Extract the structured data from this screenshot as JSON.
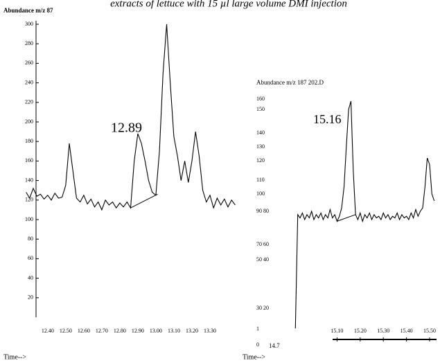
{
  "chart_data": [
    {
      "type": "line",
      "title": "extracts of lettuce with 15 µl large volume DMI injection",
      "y_label": "Abundance m/z 87",
      "x_label": "Time-->",
      "annotation": "12.89",
      "xlim": [
        12.27,
        13.45
      ],
      "xticks": [
        {
          "value": 12.4,
          "label": "12.40"
        },
        {
          "value": 12.5,
          "label": "12.50"
        },
        {
          "value": 12.6,
          "label": "12.60"
        },
        {
          "value": 12.7,
          "label": "12.70"
        },
        {
          "value": 12.8,
          "label": "12.80"
        },
        {
          "value": 12.9,
          "label": "12.90"
        },
        {
          "value": 13.0,
          "label": "13.00"
        },
        {
          "value": 13.1,
          "label": "13.10"
        },
        {
          "value": 13.2,
          "label": "13.20"
        },
        {
          "value": 13.3,
          "label": "13.30"
        }
      ],
      "ylim": [
        0,
        300
      ],
      "yticks": [
        300,
        280,
        260,
        240,
        220,
        200,
        180,
        160,
        140,
        120,
        100,
        80,
        60,
        40,
        20
      ],
      "color": "#000000",
      "x": [
        12.28,
        12.3,
        12.32,
        12.34,
        12.36,
        12.38,
        12.4,
        12.42,
        12.44,
        12.46,
        12.48,
        12.5,
        12.52,
        12.54,
        12.56,
        12.58,
        12.6,
        12.62,
        12.64,
        12.66,
        12.68,
        12.7,
        12.72,
        12.74,
        12.76,
        12.78,
        12.8,
        12.82,
        12.84,
        12.86,
        12.88,
        12.9,
        12.92,
        12.94,
        12.96,
        12.98,
        13.0,
        13.02,
        13.04,
        13.06,
        13.08,
        13.1,
        13.12,
        13.14,
        13.16,
        13.18,
        13.2,
        13.22,
        13.24,
        13.26,
        13.28,
        13.3,
        13.32,
        13.34,
        13.36,
        13.38,
        13.4,
        13.42,
        13.44
      ],
      "values": [
        128,
        122,
        132,
        124,
        126,
        121,
        125,
        120,
        127,
        122,
        123,
        135,
        178,
        150,
        122,
        118,
        125,
        116,
        121,
        113,
        118,
        110,
        120,
        115,
        118,
        112,
        117,
        113,
        118,
        112,
        160,
        188,
        178,
        160,
        140,
        128,
        125,
        170,
        250,
        300,
        240,
        185,
        165,
        140,
        160,
        138,
        160,
        190,
        165,
        130,
        118,
        125,
        112,
        122,
        115,
        121,
        113,
        120,
        115
      ],
      "integration_line": {
        "x": [
          12.86,
          13.01
        ],
        "values": [
          112,
          126
        ]
      }
    },
    {
      "type": "line",
      "y_label": "Abundance m/z 187 202.D",
      "x_label": "Time-->",
      "annotation": "15.16",
      "x_start_label": "14.7",
      "xlim": [
        14.91,
        15.53
      ],
      "xticks": [
        {
          "value": 15.1,
          "label": "15.10"
        },
        {
          "value": 15.2,
          "label": "15.20"
        },
        {
          "value": 15.3,
          "label": "15.30"
        },
        {
          "value": 15.4,
          "label": "15.40"
        },
        {
          "value": 15.5,
          "label": "15.50"
        }
      ],
      "yticks": [
        160,
        150,
        140,
        130,
        120,
        110,
        100,
        {
          "value": 90,
          "label": "90 80"
        },
        {
          "value": 70,
          "label": "70 60"
        },
        {
          "value": 50,
          "label": "50 40"
        },
        {
          "value": 30,
          "label": "30 20"
        },
        1,
        0
      ],
      "color": "#000000",
      "x": [
        14.92,
        14.93,
        14.94,
        14.95,
        14.96,
        14.97,
        14.98,
        14.99,
        15.0,
        15.01,
        15.02,
        15.03,
        15.04,
        15.05,
        15.06,
        15.07,
        15.08,
        15.09,
        15.1,
        15.11,
        15.12,
        15.13,
        15.14,
        15.15,
        15.16,
        15.17,
        15.18,
        15.19,
        15.2,
        15.21,
        15.22,
        15.23,
        15.24,
        15.25,
        15.26,
        15.27,
        15.28,
        15.29,
        15.3,
        15.31,
        15.32,
        15.33,
        15.34,
        15.35,
        15.36,
        15.37,
        15.38,
        15.39,
        15.4,
        15.41,
        15.42,
        15.43,
        15.44,
        15.45,
        15.46,
        15.47,
        15.48,
        15.49,
        15.5,
        15.51,
        15.52
      ],
      "values": [
        2,
        88,
        86,
        89,
        85,
        88,
        86,
        90,
        85,
        88,
        86,
        89,
        85,
        88,
        86,
        91,
        86,
        88,
        84,
        87,
        92,
        105,
        130,
        150,
        158,
        115,
        88,
        85,
        89,
        84,
        88,
        86,
        89,
        85,
        88,
        86,
        87,
        85,
        89,
        86,
        88,
        85,
        87,
        86,
        89,
        85,
        88,
        86,
        87,
        85,
        89,
        86,
        91,
        87,
        90,
        92,
        105,
        122,
        118,
        100,
        96
      ],
      "integration_line": {
        "x": [
          15.1,
          15.18
        ],
        "values": [
          84,
          88
        ]
      }
    }
  ]
}
